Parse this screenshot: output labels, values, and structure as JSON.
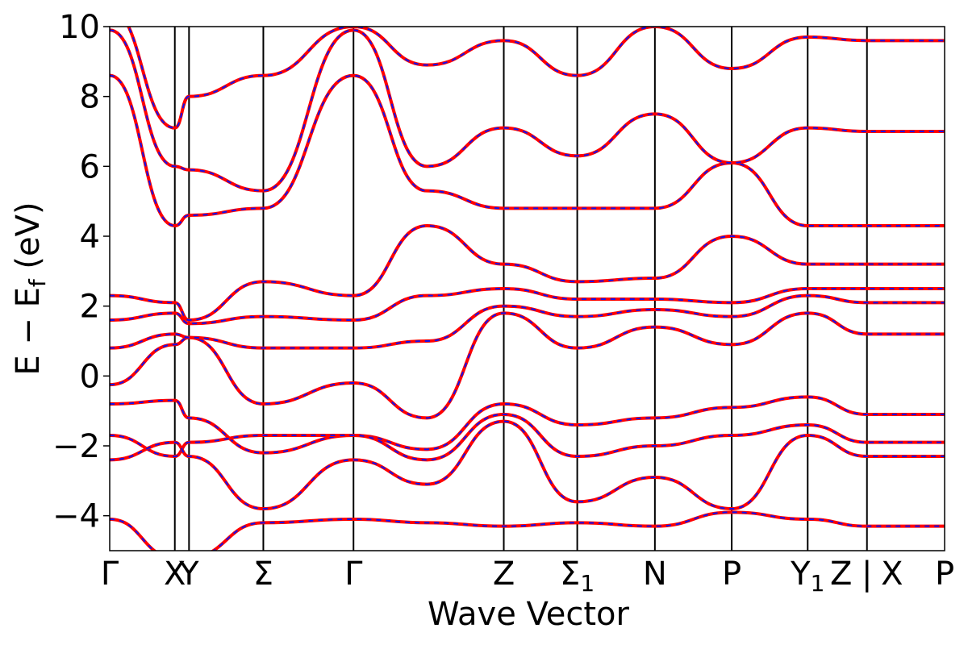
{
  "chart_data": {
    "type": "line",
    "xlabel": "Wave Vector",
    "ylabel": "E − E_f (eV)",
    "ylabel_main": "E − E",
    "ylabel_sub": "f",
    "ylabel_tail": " (eV)",
    "ylim": [
      -5,
      10
    ],
    "yticks": [
      -4,
      -2,
      0,
      2,
      4,
      6,
      8,
      10
    ],
    "ytick_labels": [
      "−4",
      "−2",
      "0",
      "2",
      "4",
      "6",
      "8",
      "10"
    ],
    "xlim": [
      0,
      1.0
    ],
    "high_symmetry_points": [
      {
        "label": "Γ",
        "x": 0.0
      },
      {
        "label": "X",
        "x": 0.078
      },
      {
        "label": "Y",
        "x": 0.095
      },
      {
        "label": "Σ",
        "x": 0.184
      },
      {
        "label": "Γ",
        "x": 0.292
      },
      {
        "label": "Z",
        "x": 0.472
      },
      {
        "label": "Σ",
        "sub": "1",
        "x": 0.56
      },
      {
        "label": "N",
        "x": 0.653
      },
      {
        "label": "P",
        "x": 0.745
      },
      {
        "label": "Y",
        "sub": "1",
        "x": 0.836
      },
      {
        "label": "Z",
        "x": 0.876
      },
      {
        "label": "|",
        "x": 0.907
      },
      {
        "label": "X",
        "x": 0.937
      },
      {
        "label": "P",
        "x": 1.0
      }
    ],
    "vertical_lines": [
      0.078,
      0.095,
      0.184,
      0.292,
      0.472,
      0.56,
      0.653,
      0.745,
      0.836,
      0.907
    ],
    "series": [
      {
        "line_style": "solid",
        "color": "#ff0000",
        "width": 4
      },
      {
        "line_style": "dashed",
        "color": "#1111ee",
        "width": 2
      }
    ],
    "bands": [
      {
        "x": [
          0.0,
          0.078,
          0.095,
          0.184,
          0.292,
          0.38,
          0.472,
          0.56,
          0.653,
          0.745,
          0.836,
          0.907
        ],
        "y": [
          -0.8,
          -0.7,
          -1.2,
          -2.2,
          -1.7,
          -2.1,
          -0.8,
          -1.4,
          -1.2,
          -0.9,
          -0.6,
          -1.1
        ]
      },
      {
        "x": [
          0.0,
          0.078,
          0.095,
          0.184,
          0.292,
          0.38,
          0.472,
          0.56,
          0.653,
          0.745,
          0.836,
          0.907
        ],
        "y": [
          -0.25,
          0.9,
          1.1,
          -0.8,
          -0.2,
          -1.2,
          1.8,
          0.8,
          1.4,
          0.9,
          1.8,
          1.2
        ]
      },
      {
        "x": [
          0.0,
          0.078,
          0.095,
          0.184,
          0.292,
          0.38,
          0.472,
          0.56,
          0.653,
          0.745,
          0.836,
          0.907
        ],
        "y": [
          0.8,
          1.2,
          1.1,
          0.8,
          0.8,
          1.0,
          2.0,
          1.7,
          1.9,
          1.7,
          2.3,
          2.1
        ]
      },
      {
        "x": [
          0.0,
          0.078,
          0.095,
          0.184,
          0.292,
          0.38,
          0.472,
          0.56,
          0.653,
          0.745,
          0.836,
          0.907
        ],
        "y": [
          1.6,
          1.8,
          1.5,
          1.7,
          1.6,
          2.3,
          2.5,
          2.2,
          2.2,
          2.1,
          2.5,
          2.5
        ]
      },
      {
        "x": [
          0.0,
          0.078,
          0.095,
          0.184,
          0.292,
          0.38,
          0.472,
          0.56,
          0.653,
          0.745,
          0.836,
          0.907
        ],
        "y": [
          2.3,
          2.1,
          1.6,
          2.7,
          2.3,
          4.3,
          3.2,
          2.7,
          2.8,
          4.0,
          3.2,
          3.2
        ]
      },
      {
        "x": [
          0.0,
          0.078,
          0.095,
          0.184,
          0.292,
          0.38,
          0.472,
          0.56,
          0.653,
          0.745,
          0.836,
          0.907
        ],
        "y": [
          8.6,
          4.3,
          4.6,
          4.8,
          8.6,
          5.3,
          4.8,
          4.8,
          4.8,
          6.1,
          4.3,
          4.3
        ]
      },
      {
        "x": [
          0.0,
          0.078,
          0.095,
          0.184,
          0.292,
          0.38,
          0.472,
          0.56,
          0.653,
          0.745,
          0.836,
          0.907
        ],
        "y": [
          9.9,
          6.0,
          5.9,
          5.3,
          9.9,
          6.0,
          7.1,
          6.3,
          7.5,
          6.1,
          7.1,
          7.0
        ]
      },
      {
        "x": [
          0.0,
          0.078,
          0.095,
          0.184,
          0.292,
          0.38,
          0.472,
          0.56,
          0.653,
          0.745,
          0.836,
          0.907
        ],
        "y": [
          10.5,
          7.1,
          8.0,
          8.6,
          10.0,
          8.9,
          9.6,
          8.6,
          10.0,
          8.8,
          9.7,
          9.6
        ]
      },
      {
        "x": [
          0.0,
          0.078,
          0.095,
          0.184,
          0.292,
          0.38,
          0.472,
          0.56,
          0.653,
          0.745,
          0.836,
          0.907
        ],
        "y": [
          -1.7,
          -2.3,
          -1.9,
          -1.7,
          -1.7,
          -2.4,
          -1.1,
          -2.3,
          -2.0,
          -1.7,
          -1.4,
          -1.9
        ]
      },
      {
        "x": [
          0.0,
          0.078,
          0.095,
          0.184,
          0.292,
          0.38,
          0.472,
          0.56,
          0.653,
          0.745,
          0.836,
          0.907
        ],
        "y": [
          -2.4,
          -1.9,
          -2.3,
          -3.8,
          -2.4,
          -3.1,
          -1.3,
          -3.6,
          -2.9,
          -3.8,
          -1.7,
          -2.3
        ]
      },
      {
        "x": [
          0.0,
          0.078,
          0.095,
          0.184,
          0.292,
          0.38,
          0.472,
          0.56,
          0.653,
          0.745,
          0.836,
          0.907
        ],
        "y": [
          -4.1,
          -5.2,
          -5.2,
          -4.2,
          -4.1,
          -4.2,
          -4.3,
          -4.2,
          -4.3,
          -3.9,
          -4.1,
          -4.3
        ]
      }
    ]
  }
}
